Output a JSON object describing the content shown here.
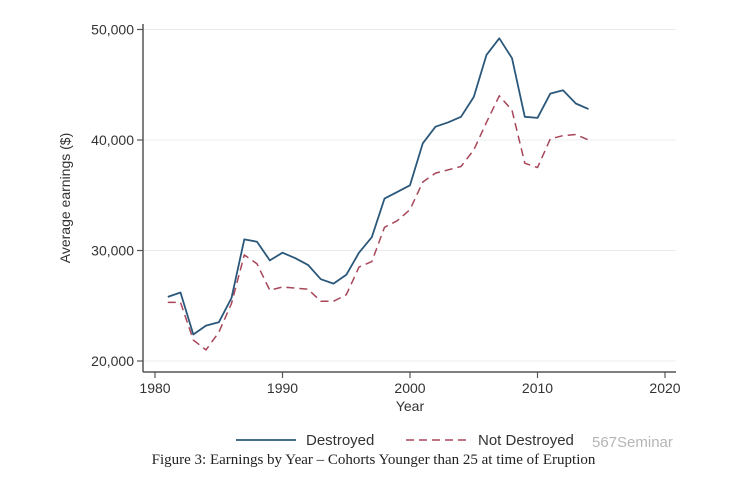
{
  "chart_data": {
    "type": "line",
    "title": "",
    "xlabel": "Year",
    "ylabel": "Average earnings ($)",
    "xlim": [
      1979,
      2021
    ],
    "ylim": [
      19000,
      50500
    ],
    "x_ticks": [
      1980,
      1990,
      2000,
      2010,
      2020
    ],
    "x_tick_labels": [
      "1980",
      "1990",
      "2000",
      "2010",
      "2020"
    ],
    "y_ticks": [
      20000,
      30000,
      40000,
      50000
    ],
    "y_tick_labels": [
      "20,000",
      "30,000",
      "40,000",
      "50,000"
    ],
    "grid": "horizontal",
    "legend_position": "bottom",
    "x": [
      1981,
      1982,
      1983,
      1984,
      1985,
      1986,
      1987,
      1988,
      1989,
      1990,
      1991,
      1992,
      1993,
      1994,
      1995,
      1996,
      1997,
      1998,
      1999,
      2000,
      2001,
      2002,
      2003,
      2004,
      2005,
      2006,
      2007,
      2008,
      2009,
      2010,
      2011,
      2012,
      2013,
      2014
    ],
    "series": [
      {
        "name": "Destroyed",
        "color": "#2b587a",
        "style": "solid",
        "values": [
          25800,
          26200,
          22400,
          23200,
          23500,
          25700,
          31000,
          30800,
          29100,
          29800,
          29300,
          28700,
          27400,
          27000,
          27800,
          29800,
          31200,
          34700,
          35300,
          35900,
          39700,
          41200,
          41600,
          42100,
          43900,
          47700,
          49200,
          47400,
          42100,
          42000,
          44200,
          44500,
          43300,
          42800
        ]
      },
      {
        "name": "Not Destroyed",
        "color": "#a8465a",
        "style": "dashed",
        "values": [
          25300,
          25300,
          21900,
          21000,
          22600,
          25200,
          29600,
          28800,
          26400,
          26700,
          26600,
          26500,
          25400,
          25400,
          26000,
          28500,
          29000,
          32100,
          32700,
          33700,
          36200,
          37000,
          37300,
          37600,
          39100,
          41600,
          44000,
          42700,
          37900,
          37500,
          40100,
          40400,
          40500,
          40000
        ]
      }
    ]
  },
  "caption": "Figure 3: Earnings by Year – Cohorts Younger than 25 at time of Eruption",
  "watermark": "567Seminar"
}
